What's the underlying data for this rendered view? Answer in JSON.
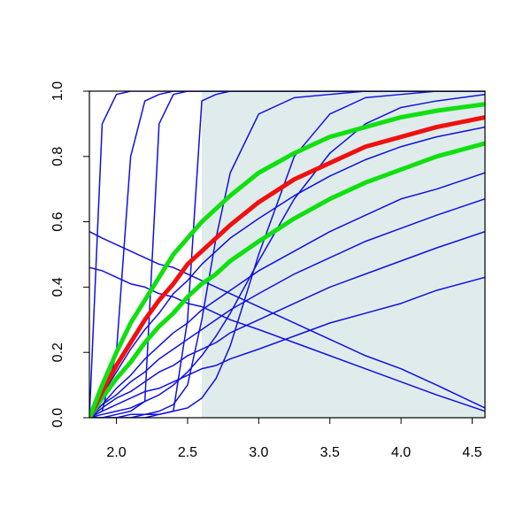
{
  "chart_data": {
    "type": "line",
    "x": [
      1.81,
      1.9,
      2.0,
      2.1,
      2.2,
      2.3,
      2.4,
      2.5,
      2.6,
      2.7,
      2.8,
      3.0,
      3.25,
      3.5,
      3.75,
      4.0,
      4.25,
      4.59
    ],
    "shaded_region": {
      "x": [
        2.6,
        4.59
      ],
      "color": "#e0ecec"
    },
    "xlim": [
      1.81,
      4.59
    ],
    "ylim": [
      0,
      1
    ],
    "xticks": [
      {
        "value": 2,
        "label": "2.0"
      },
      2.5,
      {
        "value": 3,
        "label": "3.0"
      },
      3.5,
      {
        "value": 4,
        "label": "4.0"
      },
      4.5
    ],
    "yticks": [
      {
        "value": 0,
        "label": "0.0"
      },
      0.2,
      0.4,
      0.6,
      0.8,
      {
        "value": 1,
        "label": "1.0"
      }
    ],
    "series": [
      {
        "color": "#1010e0",
        "values": [
          0,
          0.02,
          0.04,
          0.06,
          0.08,
          0.09,
          0.11,
          0.13,
          0.15,
          0.16,
          0.18,
          0.21,
          0.25,
          0.29,
          0.32,
          0.35,
          0.39,
          0.43
        ]
      },
      {
        "color": "#1010e0",
        "values": [
          0,
          0.03,
          0.06,
          0.08,
          0.11,
          0.14,
          0.16,
          0.19,
          0.21,
          0.23,
          0.26,
          0.3,
          0.35,
          0.4,
          0.44,
          0.48,
          0.52,
          0.57
        ]
      },
      {
        "color": "#1010e0",
        "values": [
          0,
          0.04,
          0.07,
          0.11,
          0.14,
          0.18,
          0.21,
          0.24,
          0.27,
          0.3,
          0.33,
          0.38,
          0.44,
          0.49,
          0.54,
          0.58,
          0.62,
          0.67
        ]
      },
      {
        "color": "#1010e0",
        "values": [
          0,
          0.04,
          0.09,
          0.13,
          0.18,
          0.22,
          0.26,
          0.29,
          0.33,
          0.36,
          0.39,
          0.45,
          0.51,
          0.57,
          0.62,
          0.67,
          0.7,
          0.75
        ]
      },
      {
        "color": "#1010e0",
        "values": [
          0,
          0.07,
          0.14,
          0.21,
          0.27,
          0.32,
          0.38,
          0.42,
          0.47,
          0.51,
          0.55,
          0.61,
          0.68,
          0.74,
          0.79,
          0.83,
          0.86,
          0.89
        ]
      },
      {
        "color": "#1010e0",
        "values": [
          0,
          0.9,
          0.99,
          1,
          1,
          1,
          1,
          1,
          1,
          1,
          1,
          1,
          1,
          1,
          1,
          1,
          1,
          1
        ]
      },
      {
        "color": "#1010e0",
        "values": [
          0,
          0.02,
          0.2,
          0.8,
          0.97,
          0.99,
          1,
          1,
          1,
          1,
          1,
          1,
          1,
          1,
          1,
          1,
          1,
          1
        ]
      },
      {
        "color": "#1010e0",
        "values": [
          0,
          0,
          0.01,
          0.02,
          0.05,
          0.9,
          0.99,
          1,
          1,
          1,
          1,
          1,
          1,
          1,
          1,
          1,
          1,
          1
        ]
      },
      {
        "color": "#1010e0",
        "values": [
          0,
          0,
          0,
          0,
          0.01,
          0.01,
          0.02,
          0.3,
          0.97,
          0.99,
          1,
          1,
          1,
          1,
          1,
          1,
          1,
          1
        ]
      },
      {
        "color": "#1010e0",
        "values": [
          0,
          0,
          0,
          0.01,
          0.01,
          0.02,
          0.04,
          0.1,
          0.3,
          0.55,
          0.75,
          0.93,
          0.98,
          0.99,
          1,
          1,
          1,
          1
        ]
      },
      {
        "color": "#1010e0",
        "values": [
          0,
          0,
          0,
          0,
          0,
          0.01,
          0.02,
          0.03,
          0.06,
          0.12,
          0.22,
          0.5,
          0.8,
          0.93,
          0.98,
          0.99,
          1,
          1
        ]
      },
      {
        "color": "#1010e0",
        "values": [
          0,
          0.01,
          0.02,
          0.03,
          0.05,
          0.07,
          0.1,
          0.14,
          0.19,
          0.25,
          0.32,
          0.48,
          0.67,
          0.81,
          0.9,
          0.95,
          0.97,
          0.99
        ]
      },
      {
        "color": "#1010e0",
        "values": [
          0.57,
          0.55,
          0.53,
          0.51,
          0.49,
          0.47,
          0.46,
          0.44,
          0.42,
          0.4,
          0.38,
          0.34,
          0.29,
          0.24,
          0.19,
          0.15,
          0.1,
          0.03
        ]
      },
      {
        "color": "#1010e0",
        "values": [
          0.46,
          0.45,
          0.43,
          0.41,
          0.4,
          0.38,
          0.37,
          0.35,
          0.34,
          0.32,
          0.3,
          0.27,
          0.23,
          0.19,
          0.15,
          0.11,
          0.07,
          0.02
        ]
      },
      {
        "color": "#10e010",
        "values": [
          0,
          0.06,
          0.12,
          0.17,
          0.23,
          0.28,
          0.32,
          0.37,
          0.41,
          0.44,
          0.48,
          0.54,
          0.61,
          0.67,
          0.72,
          0.76,
          0.8,
          0.84
        ]
      },
      {
        "color": "#f01010",
        "values": [
          0,
          0.08,
          0.16,
          0.23,
          0.3,
          0.36,
          0.41,
          0.47,
          0.51,
          0.55,
          0.59,
          0.66,
          0.73,
          0.78,
          0.83,
          0.86,
          0.89,
          0.92
        ]
      },
      {
        "color": "#10e010",
        "values": [
          0,
          0.1,
          0.2,
          0.29,
          0.36,
          0.43,
          0.5,
          0.55,
          0.6,
          0.64,
          0.68,
          0.75,
          0.81,
          0.86,
          0.89,
          0.92,
          0.94,
          0.96
        ]
      }
    ]
  }
}
